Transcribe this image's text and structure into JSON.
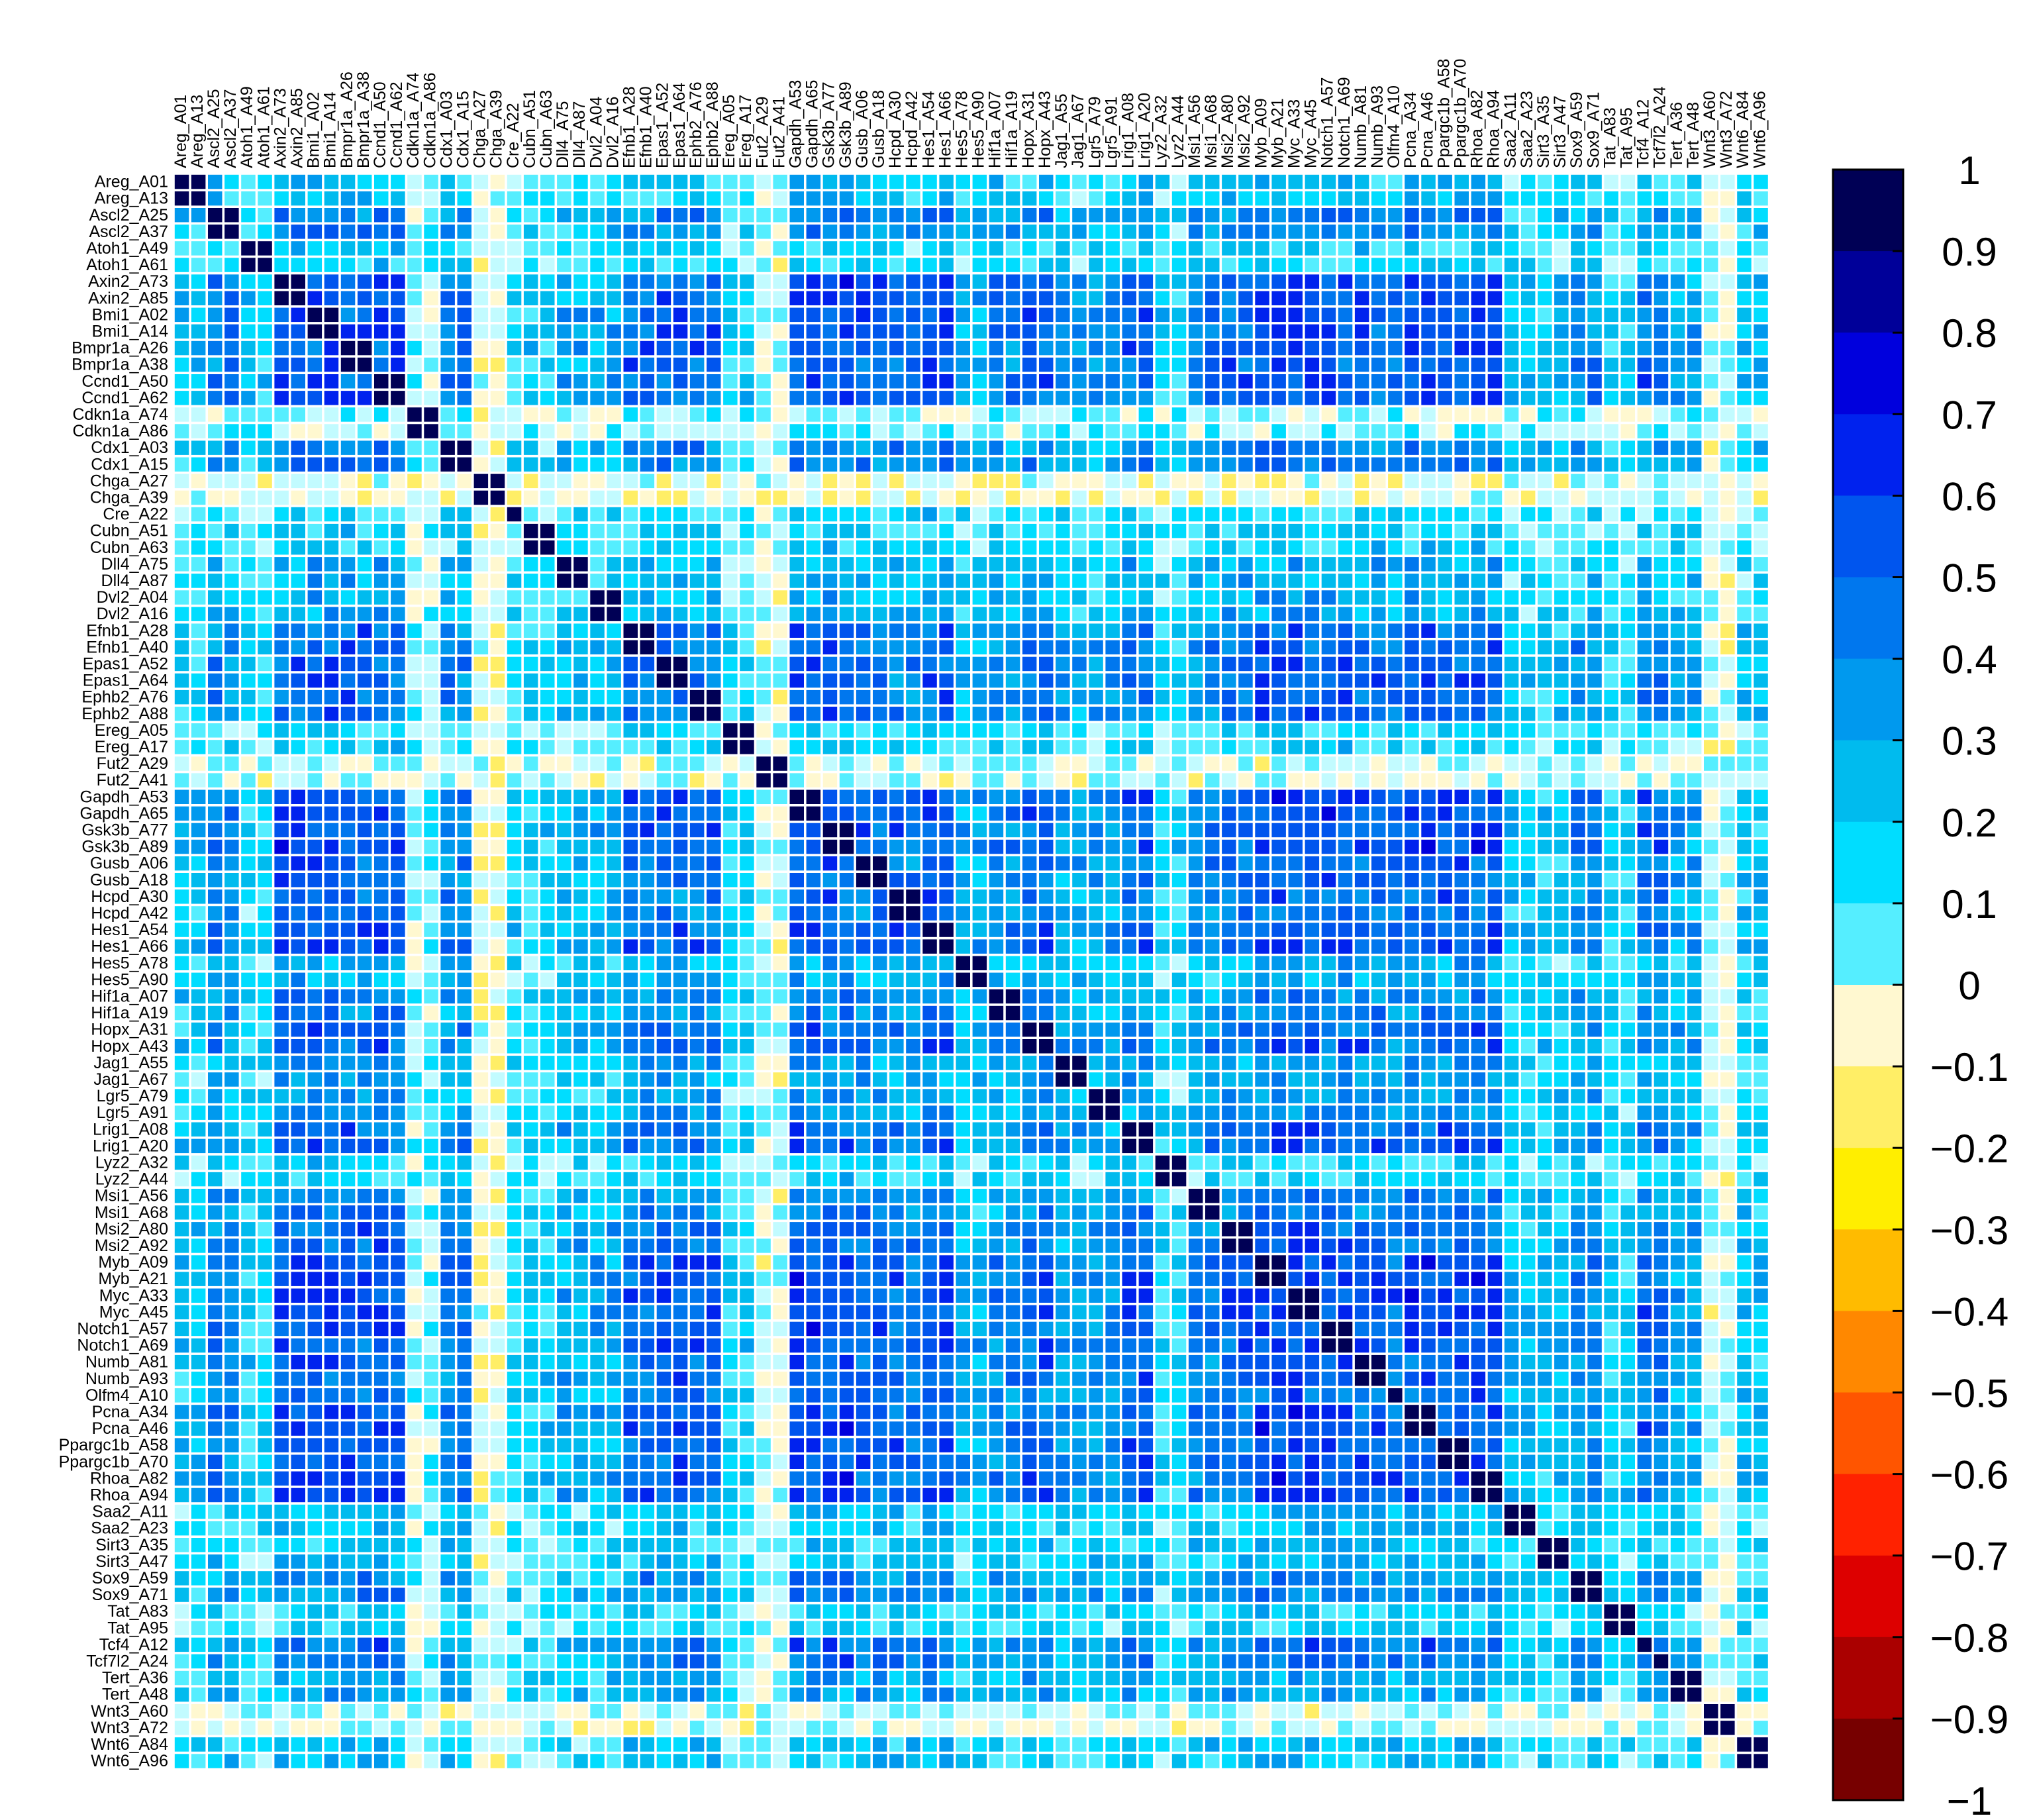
{
  "chart_data": {
    "type": "heatmap",
    "title": "",
    "xlabel": "",
    "ylabel": "",
    "labels": [
      "Areg_A01",
      "Areg_A13",
      "Ascl2_A25",
      "Ascl2_A37",
      "Atoh1_A49",
      "Atoh1_A61",
      "Axin2_A73",
      "Axin2_A85",
      "Bmi1_A02",
      "Bmi1_A14",
      "Bmpr1a_A26",
      "Bmpr1a_A38",
      "Ccnd1_A50",
      "Ccnd1_A62",
      "Cdkn1a_A74",
      "Cdkn1a_A86",
      "Cdx1_A03",
      "Cdx1_A15",
      "Chga_A27",
      "Chga_A39",
      "Cre_A22",
      "Cubn_A51",
      "Cubn_A63",
      "Dll4_A75",
      "Dll4_A87",
      "Dvl2_A04",
      "Dvl2_A16",
      "Efnb1_A28",
      "Efnb1_A40",
      "Epas1_A52",
      "Epas1_A64",
      "Ephb2_A76",
      "Ephb2_A88",
      "Ereg_A05",
      "Ereg_A17",
      "Fut2_A29",
      "Fut2_A41",
      "Gapdh_A53",
      "Gapdh_A65",
      "Gsk3b_A77",
      "Gsk3b_A89",
      "Gusb_A06",
      "Gusb_A18",
      "Hcpd_A30",
      "Hcpd_A42",
      "Hes1_A54",
      "Hes1_A66",
      "Hes5_A78",
      "Hes5_A90",
      "Hif1a_A07",
      "Hif1a_A19",
      "Hopx_A31",
      "Hopx_A43",
      "Jag1_A55",
      "Jag1_A67",
      "Lgr5_A79",
      "Lgr5_A91",
      "Lrig1_A08",
      "Lrig1_A20",
      "Lyz2_A32",
      "Lyz2_A44",
      "Msi1_A56",
      "Msi1_A68",
      "Msi2_A80",
      "Msi2_A92",
      "Myb_A09",
      "Myb_A21",
      "Myc_A33",
      "Myc_A45",
      "Notch1_A57",
      "Notch1_A69",
      "Numb_A81",
      "Numb_A93",
      "Olfm4_A10",
      "Pcna_A34",
      "Pcna_A46",
      "Ppargc1b_A58",
      "Ppargc1b_A70",
      "Rhoa_A82",
      "Rhoa_A94",
      "Saa2_A11",
      "Saa2_A23",
      "Sirt3_A35",
      "Sirt3_A47",
      "Sox9_A59",
      "Sox9_A71",
      "Tat_A83",
      "Tat_A95",
      "Tcf4_A12",
      "Tcf7l2_A24",
      "Tert_A36",
      "Tert_A48",
      "Wnt3_A60",
      "Wnt3_A72",
      "Wnt6_A84",
      "Wnt6_A96"
    ],
    "value_range": [
      -1,
      1
    ],
    "colorbar": {
      "ticks": [
        "1",
        "0.9",
        "0.8",
        "0.7",
        "0.6",
        "0.5",
        "0.4",
        "0.3",
        "0.2",
        "0.1",
        "0",
        "−0.1",
        "−0.2",
        "−0.3",
        "−0.4",
        "−0.5",
        "−0.6",
        "−0.7",
        "−0.8",
        "−0.9",
        "−1"
      ],
      "tick_values": [
        1,
        0.9,
        0.8,
        0.7,
        0.6,
        0.5,
        0.4,
        0.3,
        0.2,
        0.1,
        0,
        -0.1,
        -0.2,
        -0.3,
        -0.4,
        -0.5,
        -0.6,
        -0.7,
        -0.8,
        -0.9,
        -1
      ],
      "colors": [
        "#000055",
        "#000099",
        "#0000dd",
        "#0022ee",
        "#0055ee",
        "#0077ee",
        "#0099ee",
        "#00bbee",
        "#00ddff",
        "#55eeff",
        "#c2fbff",
        "#fff8d0",
        "#ffee66",
        "#ffee00",
        "#ffbb00",
        "#ff8800",
        "#ff5500",
        "#ff2200",
        "#dd0000",
        "#aa0000",
        "#770000"
      ]
    },
    "gene_block_strength": {
      "Areg": 0.1,
      "Ascl2": 0.35,
      "Atoh1": 0.05,
      "Axin2": 0.55,
      "Bmi1": 0.55,
      "Bmpr1a": 0.5,
      "Ccnd1": 0.55,
      "Cdkn1a": 0.0,
      "Cdx1": 0.35,
      "Chga": -0.1,
      "Cre": 0.05,
      "Cubn": 0.05,
      "Dll4": 0.15,
      "Dvl2": 0.15,
      "Efnb1": 0.45,
      "Epas1": 0.45,
      "Ephb2": 0.45,
      "Ereg": 0.05,
      "Fut2": -0.05,
      "Gapdh": 0.6,
      "Gsk3b": 0.6,
      "Gusb": 0.45,
      "Hcpd": 0.4,
      "Hes1": 0.55,
      "Hes5": 0.15,
      "Hif1a": 0.3,
      "Hopx": 0.45,
      "Jag1": 0.2,
      "Lgr5": 0.25,
      "Lrig1": 0.45,
      "Lyz2": 0.05,
      "Msi1": 0.35,
      "Msi2": 0.45,
      "Myb": 0.6,
      "Myc": 0.6,
      "Notch1": 0.55,
      "Numb": 0.5,
      "Olfm4": 0.4,
      "Pcna": 0.55,
      "Ppargc1b": 0.55,
      "Rhoa": 0.55,
      "Saa2": 0.1,
      "Sirt3": 0.1,
      "Sox9": 0.3,
      "Tat": 0.05,
      "Tcf4": 0.4,
      "Tcf7l2": 0.4,
      "Tert": 0.2,
      "Wnt3": -0.05,
      "Wnt6": 0.1
    },
    "diagonal_value": 1,
    "replicate_pair_value": 0.95,
    "grid": false,
    "legend_placement": "right"
  }
}
